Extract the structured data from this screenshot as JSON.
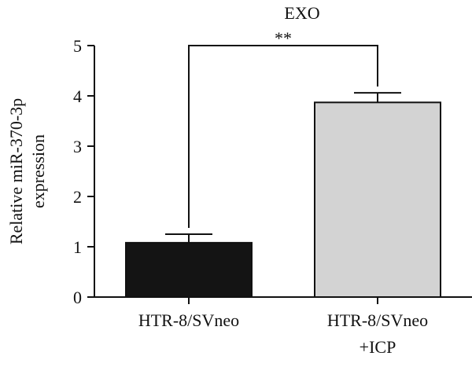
{
  "chart_data": {
    "type": "bar",
    "title": "EXO",
    "xlabel": "",
    "ylabel_lines": [
      "Relative miR-370-3p",
      "expression"
    ],
    "categories": [
      {
        "lines": [
          "HTR-8/SVneo"
        ]
      },
      {
        "lines": [
          "HTR-8/SVneo",
          "+ICP"
        ]
      }
    ],
    "values": [
      1.08,
      3.87
    ],
    "errors": [
      0.17,
      0.19
    ],
    "colors": [
      "#141414",
      "#d3d3d3"
    ],
    "ylim": [
      0,
      5
    ],
    "yticks": [
      "0",
      "1",
      "2",
      "3",
      "4",
      "5"
    ],
    "grid": false,
    "significance": {
      "label": "**",
      "between": [
        0,
        1
      ]
    }
  }
}
